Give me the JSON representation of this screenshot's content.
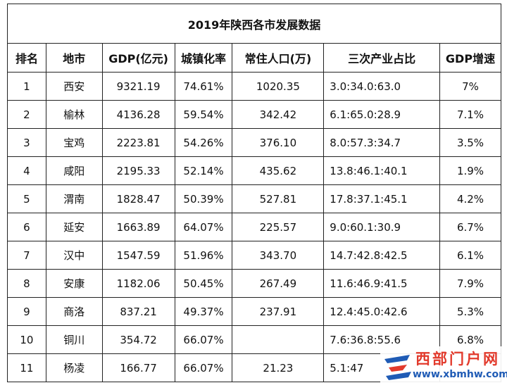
{
  "title": "2019年陕西各市发展数据",
  "table": {
    "header": [
      "排名",
      "地市",
      "GDP(亿元)",
      "城镇化率",
      "常住人口(万)",
      "三次产业占比",
      "GDP增速"
    ],
    "rows": [
      [
        "1",
        "西安",
        "9321.19",
        "74.61%",
        "1020.35",
        "3.0:34.0:63.0",
        "7%"
      ],
      [
        "2",
        "榆林",
        "4136.28",
        "59.54%",
        "342.42",
        "6.1:65.0:28.9",
        "7.1%"
      ],
      [
        "3",
        "宝鸡",
        "2223.81",
        "54.26%",
        "376.10",
        "8.0:57.3:34.7",
        "3.5%"
      ],
      [
        "4",
        "咸阳",
        "2195.33",
        "52.14%",
        "435.62",
        "13.8:46.1:40.1",
        "1.9%"
      ],
      [
        "5",
        "渭南",
        "1828.47",
        "50.39%",
        "527.81",
        "17.8:37.1:45.1",
        "4.2%"
      ],
      [
        "6",
        "延安",
        "1663.89",
        "64.07%",
        "225.57",
        "9.0:60.1:30.9",
        "6.7%"
      ],
      [
        "7",
        "汉中",
        "1547.59",
        "51.96%",
        "343.70",
        "14.7:42.8:42.5",
        "6.1%"
      ],
      [
        "8",
        "安康",
        "1182.06",
        "50.45%",
        "267.49",
        "11.6:46.9:41.5",
        "7.9%"
      ],
      [
        "9",
        "商洛",
        "837.21",
        "49.37%",
        "237.91",
        "12.4:45.0:42.6",
        "5.3%"
      ],
      [
        "10",
        "铜川",
        "354.72",
        "66.07%",
        null,
        "7.6:36.8:55.6",
        "6.8%"
      ],
      [
        "11",
        "杨凌",
        "166.77",
        "66.07%",
        "21.23",
        "5.1:47",
        null
      ]
    ]
  },
  "watermark": {
    "name": "西部门户网",
    "url": "www.xbmhw.com"
  }
}
